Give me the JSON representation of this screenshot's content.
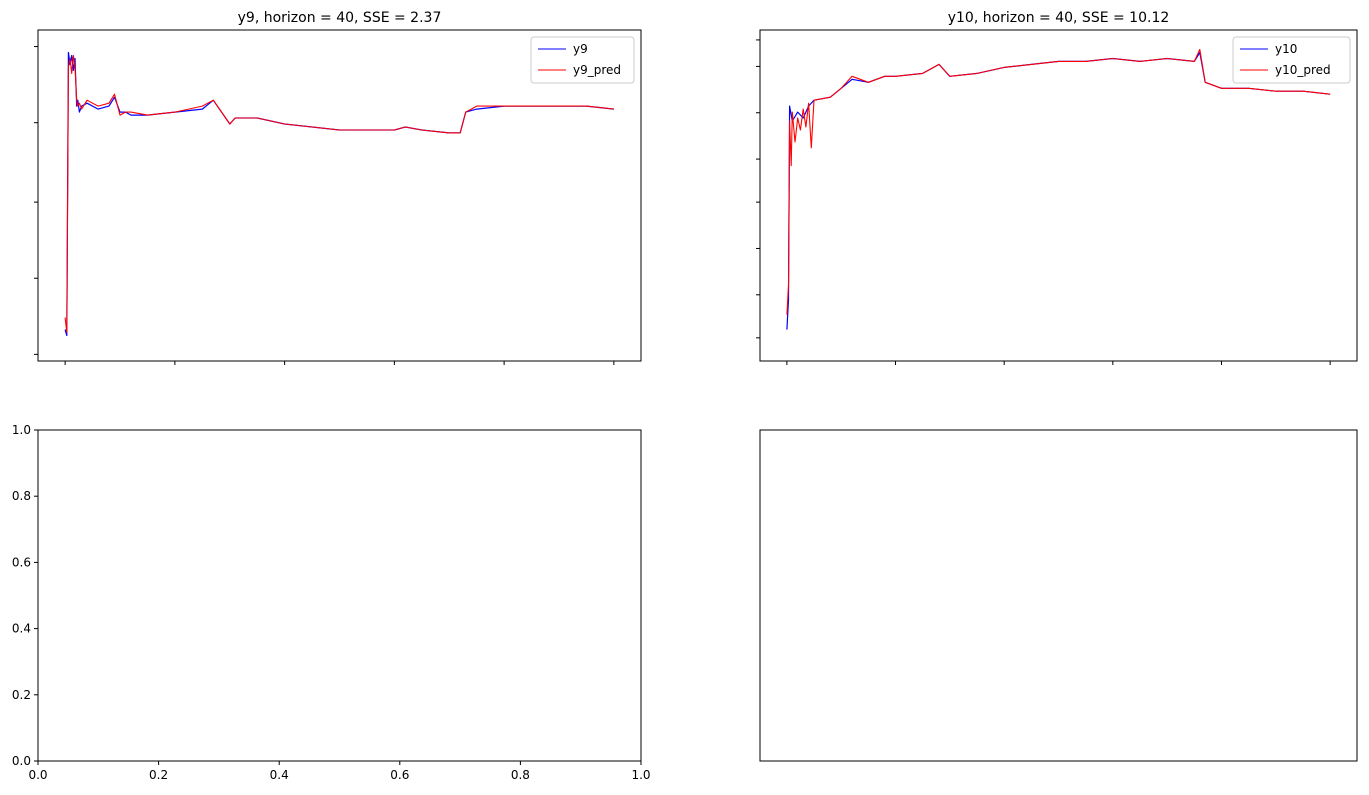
{
  "colors": {
    "actual": "#0000ff",
    "predicted": "#ff0000",
    "axes": "#000000"
  },
  "chart_data": [
    {
      "type": "line",
      "title": "y9, horizon = 40, SSE = 2.37",
      "xlabel": "",
      "ylabel": "",
      "tick_labels_visible": false,
      "grid": false,
      "legend_position": "top-right",
      "xlim": [
        0,
        1
      ],
      "ylim": [
        0,
        1
      ],
      "x_ticks": [
        0,
        0.2,
        0.4,
        0.6,
        0.8,
        1.0
      ],
      "y_ticks": [
        0.02,
        0.25,
        0.48,
        0.72,
        0.95
      ],
      "series": [
        {
          "name": "y9",
          "role": "actual",
          "x": [
            0.0,
            0.003,
            0.006,
            0.009,
            0.012,
            0.015,
            0.018,
            0.021,
            0.023,
            0.026,
            0.03,
            0.04,
            0.06,
            0.08,
            0.09,
            0.1,
            0.11,
            0.12,
            0.15,
            0.2,
            0.25,
            0.27,
            0.3,
            0.31,
            0.35,
            0.4,
            0.45,
            0.5,
            0.55,
            0.6,
            0.62,
            0.65,
            0.7,
            0.72,
            0.73,
            0.75,
            0.8,
            0.85,
            0.9,
            0.95,
            1.0
          ],
          "y": [
            0.05,
            0.03,
            0.98,
            0.94,
            0.97,
            0.92,
            0.96,
            0.8,
            0.82,
            0.78,
            0.8,
            0.81,
            0.79,
            0.8,
            0.83,
            0.78,
            0.78,
            0.77,
            0.77,
            0.78,
            0.79,
            0.82,
            0.74,
            0.76,
            0.76,
            0.74,
            0.73,
            0.72,
            0.72,
            0.72,
            0.73,
            0.72,
            0.71,
            0.71,
            0.78,
            0.79,
            0.8,
            0.8,
            0.8,
            0.8,
            0.79
          ]
        },
        {
          "name": "y9_pred",
          "role": "predicted",
          "x": [
            0.0,
            0.003,
            0.006,
            0.009,
            0.012,
            0.015,
            0.018,
            0.021,
            0.023,
            0.026,
            0.03,
            0.04,
            0.06,
            0.08,
            0.09,
            0.1,
            0.11,
            0.12,
            0.15,
            0.2,
            0.25,
            0.27,
            0.3,
            0.31,
            0.35,
            0.4,
            0.45,
            0.5,
            0.55,
            0.6,
            0.62,
            0.65,
            0.7,
            0.72,
            0.73,
            0.75,
            0.8,
            0.85,
            0.9,
            0.95,
            1.0
          ],
          "y": [
            0.09,
            0.04,
            0.93,
            0.96,
            0.91,
            0.97,
            0.93,
            0.82,
            0.8,
            0.81,
            0.79,
            0.82,
            0.8,
            0.81,
            0.84,
            0.77,
            0.78,
            0.78,
            0.77,
            0.78,
            0.8,
            0.82,
            0.74,
            0.76,
            0.76,
            0.74,
            0.73,
            0.72,
            0.72,
            0.72,
            0.73,
            0.72,
            0.71,
            0.71,
            0.78,
            0.8,
            0.8,
            0.8,
            0.8,
            0.8,
            0.79
          ]
        }
      ]
    },
    {
      "type": "line",
      "title": "y10, horizon = 40, SSE = 10.12",
      "xlabel": "",
      "ylabel": "",
      "tick_labels_visible": false,
      "grid": false,
      "legend_position": "top-right",
      "xlim": [
        0,
        1
      ],
      "ylim": [
        0,
        1
      ],
      "x_ticks": [
        0,
        0.2,
        0.4,
        0.6,
        0.8,
        1.0
      ],
      "y_ticks": [
        0.07,
        0.2,
        0.34,
        0.48,
        0.61,
        0.75,
        0.89,
        0.97
      ],
      "series": [
        {
          "name": "y10",
          "role": "actual",
          "x": [
            0.0,
            0.003,
            0.005,
            0.01,
            0.02,
            0.03,
            0.04,
            0.05,
            0.08,
            0.1,
            0.12,
            0.15,
            0.18,
            0.2,
            0.25,
            0.28,
            0.29,
            0.3,
            0.35,
            0.4,
            0.45,
            0.5,
            0.55,
            0.6,
            0.65,
            0.7,
            0.75,
            0.76,
            0.77,
            0.8,
            0.85,
            0.9,
            0.95,
            1.0
          ],
          "y": [
            0.05,
            0.15,
            0.8,
            0.75,
            0.78,
            0.76,
            0.8,
            0.82,
            0.83,
            0.86,
            0.89,
            0.88,
            0.9,
            0.9,
            0.91,
            0.94,
            0.92,
            0.9,
            0.91,
            0.93,
            0.94,
            0.95,
            0.95,
            0.96,
            0.95,
            0.96,
            0.95,
            0.98,
            0.88,
            0.86,
            0.86,
            0.85,
            0.85,
            0.84
          ]
        },
        {
          "name": "y10_pred",
          "role": "predicted",
          "x": [
            0.0,
            0.003,
            0.005,
            0.008,
            0.01,
            0.015,
            0.02,
            0.025,
            0.03,
            0.035,
            0.04,
            0.045,
            0.05,
            0.08,
            0.1,
            0.12,
            0.15,
            0.18,
            0.2,
            0.25,
            0.28,
            0.29,
            0.3,
            0.35,
            0.4,
            0.45,
            0.5,
            0.55,
            0.6,
            0.65,
            0.7,
            0.75,
            0.76,
            0.77,
            0.8,
            0.85,
            0.9,
            0.95,
            1.0
          ],
          "y": [
            0.1,
            0.2,
            0.75,
            0.6,
            0.78,
            0.68,
            0.76,
            0.72,
            0.79,
            0.73,
            0.81,
            0.66,
            0.82,
            0.83,
            0.86,
            0.9,
            0.88,
            0.9,
            0.9,
            0.91,
            0.94,
            0.92,
            0.9,
            0.91,
            0.93,
            0.94,
            0.95,
            0.95,
            0.96,
            0.95,
            0.96,
            0.95,
            0.99,
            0.88,
            0.86,
            0.86,
            0.85,
            0.85,
            0.84
          ]
        }
      ]
    },
    {
      "type": "line",
      "title": "",
      "xlabel": "",
      "ylabel": "",
      "tick_labels_visible": true,
      "grid": false,
      "xlim": [
        0,
        1
      ],
      "ylim": [
        0,
        1
      ],
      "x_ticks": [
        0,
        0.2,
        0.4,
        0.6,
        0.8,
        1.0
      ],
      "x_tick_labels": [
        "0.0",
        "0.2",
        "0.4",
        "0.6",
        "0.8",
        "1.0"
      ],
      "y_ticks": [
        0,
        0.2,
        0.4,
        0.6,
        0.8,
        1.0
      ],
      "y_tick_labels": [
        "0.0",
        "0.2",
        "0.4",
        "0.6",
        "0.8",
        "1.0"
      ],
      "series": []
    },
    {
      "type": "line",
      "title": "",
      "xlabel": "",
      "ylabel": "",
      "tick_labels_visible": false,
      "grid": false,
      "xlim": [
        0,
        1
      ],
      "ylim": [
        0,
        1
      ],
      "x_ticks": [],
      "y_ticks": [],
      "series": []
    }
  ]
}
